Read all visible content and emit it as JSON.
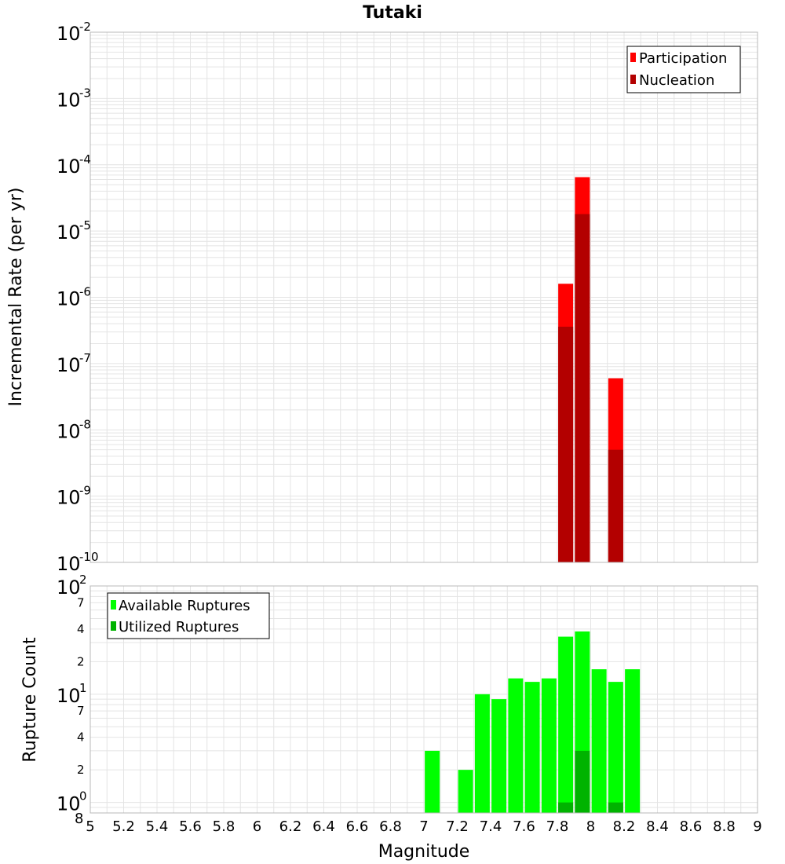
{
  "chart_data": [
    {
      "type": "bar",
      "title": "Tutaki",
      "xlabel": "",
      "ylabel": "Incremental Rate (per yr)",
      "yscale": "log",
      "ylim": [
        1e-10,
        0.01
      ],
      "xlim": [
        5,
        9
      ],
      "y_tick_exponents": [
        "-10",
        "-9",
        "-8",
        "-7",
        "-6",
        "-5",
        "-4",
        "-3",
        "-2"
      ],
      "y_tick_base": "10",
      "grid": true,
      "legend_position": "top-right",
      "series": [
        {
          "name": "Participation",
          "color": "#ff0000",
          "x": [
            7.85,
            7.95,
            8.15
          ],
          "values": [
            1.6e-06,
            6.5e-05,
            6e-08
          ]
        },
        {
          "name": "Nucleation",
          "color": "#b30000",
          "x": [
            7.85,
            7.95,
            8.15
          ],
          "values": [
            3.6e-07,
            1.8e-05,
            5e-09
          ]
        }
      ]
    },
    {
      "type": "bar",
      "title": "",
      "xlabel": "Magnitude",
      "ylabel": "Rupture Count",
      "yscale": "log",
      "ylim": [
        0.8,
        100
      ],
      "xlim": [
        5,
        9
      ],
      "x_ticks": [
        "5",
        "5.2",
        "5.4",
        "5.6",
        "5.8",
        "6",
        "6.2",
        "6.4",
        "6.6",
        "6.8",
        "7",
        "7.2",
        "7.4",
        "7.6",
        "7.8",
        "8",
        "8.2",
        "8.4",
        "8.6",
        "8.8",
        "9"
      ],
      "y_decades": [
        {
          "value": 1,
          "base": "10",
          "exp": "0"
        },
        {
          "value": 10,
          "base": "10",
          "exp": "1"
        },
        {
          "value": 100,
          "base": "10",
          "exp": "2"
        }
      ],
      "y_minor_labels": [
        {
          "value": 0.8,
          "label": "8"
        },
        {
          "value": 2,
          "label": "2"
        },
        {
          "value": 4,
          "label": "4"
        },
        {
          "value": 7,
          "label": "7"
        },
        {
          "value": 20,
          "label": "2"
        },
        {
          "value": 40,
          "label": "4"
        },
        {
          "value": 70,
          "label": "7"
        }
      ],
      "grid": true,
      "legend_position": "top-left",
      "series": [
        {
          "name": "Available Ruptures",
          "color": "#00ff00",
          "x": [
            7.05,
            7.25,
            7.35,
            7.45,
            7.55,
            7.65,
            7.75,
            7.85,
            7.95,
            8.05,
            8.15,
            8.25
          ],
          "values": [
            3,
            2,
            10,
            9,
            14,
            13,
            14,
            34,
            38,
            17,
            13,
            17
          ]
        },
        {
          "name": "Utilized Ruptures",
          "color": "#00b300",
          "x": [
            7.85,
            7.95,
            8.15
          ],
          "values": [
            1,
            3,
            1
          ]
        }
      ]
    }
  ]
}
